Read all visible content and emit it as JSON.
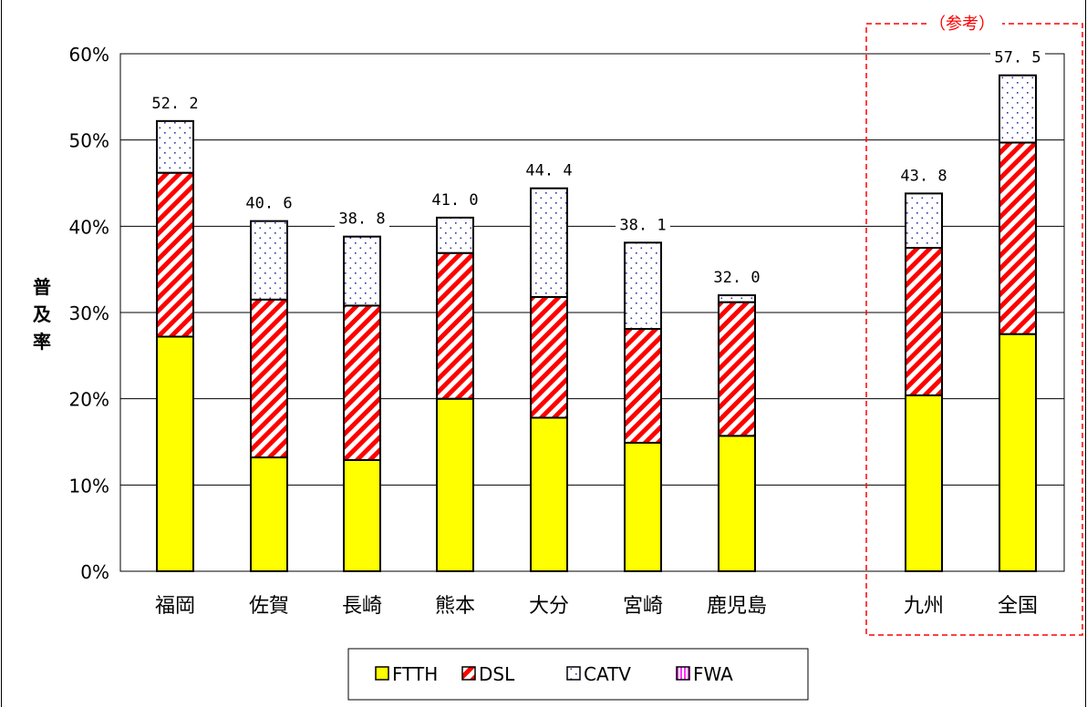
{
  "chart_data": {
    "type": "bar",
    "stacked": true,
    "ylabel": "普及率",
    "ylim": [
      0,
      60
    ],
    "yticks": [
      "0%",
      "10%",
      "20%",
      "30%",
      "40%",
      "50%",
      "60%"
    ],
    "grid": true,
    "categories": [
      "福岡",
      "佐賀",
      "長崎",
      "熊本",
      "大分",
      "宮崎",
      "鹿児島",
      "九州",
      "全国"
    ],
    "reference_categories": [
      "九州",
      "全国"
    ],
    "reference_label": "（参考）",
    "totals": [
      "52. 2",
      "40. 6",
      "38. 8",
      "41. 0",
      "44. 4",
      "38. 1",
      "32. 0",
      "43. 8",
      "57. 5"
    ],
    "series": [
      {
        "name": "FTTH",
        "values": [
          27.2,
          13.2,
          12.9,
          20.0,
          17.8,
          14.9,
          15.7,
          20.4,
          27.5
        ]
      },
      {
        "name": "DSL",
        "values": [
          19.0,
          18.3,
          17.9,
          16.9,
          14.0,
          13.2,
          15.5,
          17.1,
          22.2
        ]
      },
      {
        "name": "CATV",
        "values": [
          6.0,
          9.1,
          8.0,
          4.1,
          12.6,
          10.0,
          0.8,
          6.3,
          7.8
        ]
      },
      {
        "name": "FWA",
        "values": [
          0,
          0,
          0,
          0,
          0,
          0,
          0,
          0,
          0
        ]
      }
    ],
    "legend_position": "bottom"
  },
  "colors": {
    "ftth": "#ffff00",
    "dsl_stripe": "#ff0000",
    "catv_dot": "#3333aa",
    "fwa": "#ff33ff",
    "reference_box": "#ff0000",
    "grid": "#000000"
  }
}
